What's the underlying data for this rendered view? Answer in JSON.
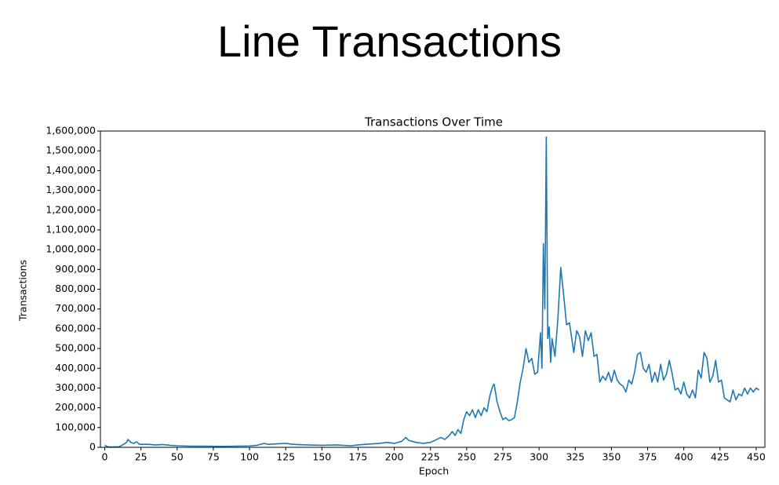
{
  "slide_title": "Line Transactions",
  "chart_data": {
    "type": "line",
    "title": "Transactions Over Time",
    "x_label": "Epoch",
    "y_label": "Transactions",
    "color": "#1f77b4",
    "x": [
      0,
      2,
      5,
      10,
      13,
      15,
      16,
      18,
      20,
      22,
      24,
      30,
      35,
      40,
      45,
      50,
      55,
      60,
      70,
      80,
      90,
      100,
      105,
      110,
      113,
      120,
      125,
      130,
      140,
      150,
      160,
      170,
      175,
      180,
      190,
      195,
      200,
      205,
      208,
      210,
      215,
      220,
      225,
      228,
      232,
      235,
      238,
      240,
      242,
      244,
      246,
      248,
      250,
      252,
      254,
      256,
      258,
      260,
      262,
      264,
      266,
      268,
      269,
      271,
      273,
      275,
      277,
      279,
      281,
      283,
      285,
      287,
      289,
      291,
      293,
      295,
      297,
      299,
      301,
      302,
      303,
      304,
      305,
      306,
      307,
      308,
      309,
      311,
      313,
      315,
      317,
      319,
      321,
      322,
      324,
      326,
      328,
      330,
      332,
      334,
      336,
      338,
      340,
      342,
      344,
      346,
      348,
      350,
      352,
      354,
      356,
      358,
      360,
      362,
      364,
      366,
      368,
      370,
      372,
      374,
      376,
      378,
      380,
      382,
      384,
      386,
      388,
      390,
      392,
      394,
      396,
      398,
      400,
      402,
      404,
      406,
      408,
      410,
      412,
      414,
      416,
      418,
      420,
      422,
      424,
      426,
      428,
      430,
      432,
      434,
      436,
      438,
      440,
      442,
      444,
      446,
      448,
      450,
      452
    ],
    "values": [
      10000,
      3000,
      2000,
      3000,
      15000,
      25000,
      40000,
      25000,
      20000,
      28000,
      15000,
      15000,
      12000,
      14000,
      10000,
      8000,
      7000,
      6000,
      6000,
      5000,
      6000,
      7000,
      10000,
      20000,
      15000,
      18000,
      20000,
      15000,
      12000,
      10000,
      12000,
      8000,
      12000,
      15000,
      20000,
      25000,
      20000,
      30000,
      50000,
      35000,
      25000,
      20000,
      25000,
      35000,
      50000,
      40000,
      60000,
      80000,
      60000,
      90000,
      70000,
      140000,
      180000,
      160000,
      190000,
      150000,
      190000,
      160000,
      200000,
      180000,
      260000,
      310000,
      320000,
      230000,
      180000,
      140000,
      150000,
      135000,
      140000,
      150000,
      230000,
      330000,
      400000,
      500000,
      430000,
      450000,
      370000,
      380000,
      580000,
      400000,
      1030000,
      700000,
      1570000,
      550000,
      610000,
      430000,
      550000,
      460000,
      650000,
      910000,
      770000,
      620000,
      630000,
      580000,
      480000,
      590000,
      560000,
      460000,
      590000,
      540000,
      580000,
      460000,
      470000,
      330000,
      360000,
      340000,
      380000,
      330000,
      390000,
      340000,
      320000,
      310000,
      280000,
      340000,
      320000,
      380000,
      470000,
      480000,
      400000,
      380000,
      420000,
      330000,
      380000,
      330000,
      420000,
      340000,
      370000,
      440000,
      370000,
      290000,
      300000,
      270000,
      330000,
      270000,
      250000,
      290000,
      250000,
      390000,
      350000,
      480000,
      450000,
      330000,
      360000,
      440000,
      330000,
      340000,
      250000,
      240000,
      230000,
      290000,
      240000,
      270000,
      260000,
      300000,
      270000,
      300000,
      280000,
      300000,
      290000
    ],
    "xlim": [
      -3,
      456
    ],
    "xticks": [
      0,
      25,
      50,
      75,
      100,
      125,
      150,
      175,
      200,
      225,
      250,
      275,
      300,
      325,
      350,
      375,
      400,
      425,
      450
    ],
    "ylim": [
      0,
      1600000
    ],
    "yticks": [
      0,
      {
        "value": 100000,
        "label": "100,000"
      },
      {
        "value": 200000,
        "label": "200,000"
      },
      {
        "value": 300000,
        "label": "300,000"
      },
      {
        "value": 400000,
        "label": "400,000"
      },
      {
        "value": 500000,
        "label": "500,000"
      },
      {
        "value": 600000,
        "label": "600,000"
      },
      {
        "value": 700000,
        "label": "700,000"
      },
      {
        "value": 800000,
        "label": "800,000"
      },
      {
        "value": 900000,
        "label": "900,000"
      },
      {
        "value": 1000000,
        "label": "1,000,000"
      },
      {
        "value": 1100000,
        "label": "1,100,000"
      },
      {
        "value": 1200000,
        "label": "1,200,000"
      },
      {
        "value": 1300000,
        "label": "1,300,000"
      },
      {
        "value": 1400000,
        "label": "1,400,000"
      },
      {
        "value": 1500000,
        "label": "1,500,000"
      },
      {
        "value": 1600000,
        "label": "1,600,000"
      }
    ]
  }
}
